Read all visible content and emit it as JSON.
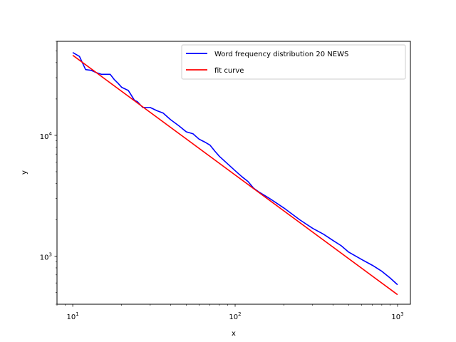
{
  "chart_data": {
    "type": "line",
    "title": "",
    "xlabel": "x",
    "ylabel": "y",
    "xscale": "log",
    "yscale": "log",
    "xlim": [
      8,
      1200
    ],
    "ylim": [
      400,
      60000
    ],
    "grid": false,
    "legend_position": "top-right",
    "x_major_ticks": [
      10,
      100,
      1000
    ],
    "x_major_tick_labels": [
      {
        "base": "10",
        "exp": "1"
      },
      {
        "base": "10",
        "exp": "2"
      },
      {
        "base": "10",
        "exp": "3"
      }
    ],
    "y_major_ticks": [
      1000,
      10000
    ],
    "y_major_tick_labels": [
      {
        "base": "10",
        "exp": "3"
      },
      {
        "base": "10",
        "exp": "4"
      }
    ],
    "series": [
      {
        "name": "Word frequency distribution 20 NEWS",
        "color": "#0000ff",
        "x": [
          10,
          11,
          12,
          13,
          14,
          15,
          16,
          17,
          18,
          19,
          20,
          22,
          24,
          25,
          27,
          30,
          33,
          36,
          40,
          45,
          50,
          55,
          60,
          65,
          70,
          75,
          80,
          90,
          100,
          110,
          120,
          130,
          140,
          160,
          180,
          200,
          250,
          300,
          350,
          400,
          450,
          500,
          600,
          700,
          800,
          900,
          1000
        ],
        "y": [
          48500,
          45000,
          35000,
          34500,
          33000,
          32000,
          32000,
          32000,
          29000,
          27000,
          25000,
          23500,
          19500,
          19000,
          17000,
          17000,
          16000,
          15300,
          13500,
          12000,
          10700,
          10300,
          9300,
          8800,
          8300,
          7400,
          6700,
          5800,
          5100,
          4550,
          4150,
          3650,
          3400,
          3050,
          2750,
          2500,
          2000,
          1700,
          1520,
          1350,
          1220,
          1080,
          940,
          840,
          750,
          660,
          580
        ]
      },
      {
        "name": "fit curve",
        "color": "#ff0000",
        "x": [
          10,
          1000
        ],
        "y": [
          46000,
          480
        ]
      }
    ]
  }
}
